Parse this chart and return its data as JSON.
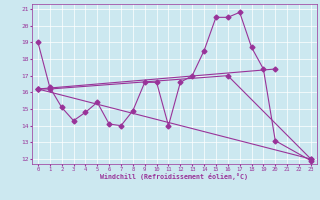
{
  "xlabel": "Windchill (Refroidissement éolien,°C)",
  "bg_color": "#cce8f0",
  "line_color": "#993399",
  "xlim": [
    -0.5,
    23.5
  ],
  "ylim": [
    11.7,
    21.3
  ],
  "xticks": [
    0,
    1,
    2,
    3,
    4,
    5,
    6,
    7,
    8,
    9,
    10,
    11,
    12,
    13,
    14,
    15,
    16,
    17,
    18,
    19,
    20,
    21,
    22,
    23
  ],
  "yticks": [
    12,
    13,
    14,
    15,
    16,
    17,
    18,
    19,
    20,
    21
  ],
  "series0_x": [
    0,
    1,
    2,
    3,
    4,
    5,
    6,
    7,
    8,
    9,
    10,
    11,
    12,
    13,
    14,
    15,
    16,
    17,
    18,
    19,
    20,
    23
  ],
  "series0_y": [
    19,
    16.3,
    15.1,
    14.3,
    14.8,
    15.4,
    14.1,
    14.0,
    14.9,
    16.6,
    16.6,
    14.0,
    16.6,
    17.0,
    18.5,
    20.5,
    20.5,
    20.8,
    18.7,
    17.4,
    13.1,
    11.9
  ],
  "series1_x": [
    0,
    1,
    16,
    23
  ],
  "series1_y": [
    16.2,
    16.2,
    17.0,
    12.0
  ],
  "series2_x": [
    0,
    20
  ],
  "series2_y": [
    16.2,
    17.4
  ],
  "series3_x": [
    0,
    23
  ],
  "series3_y": [
    16.2,
    12.0
  ]
}
